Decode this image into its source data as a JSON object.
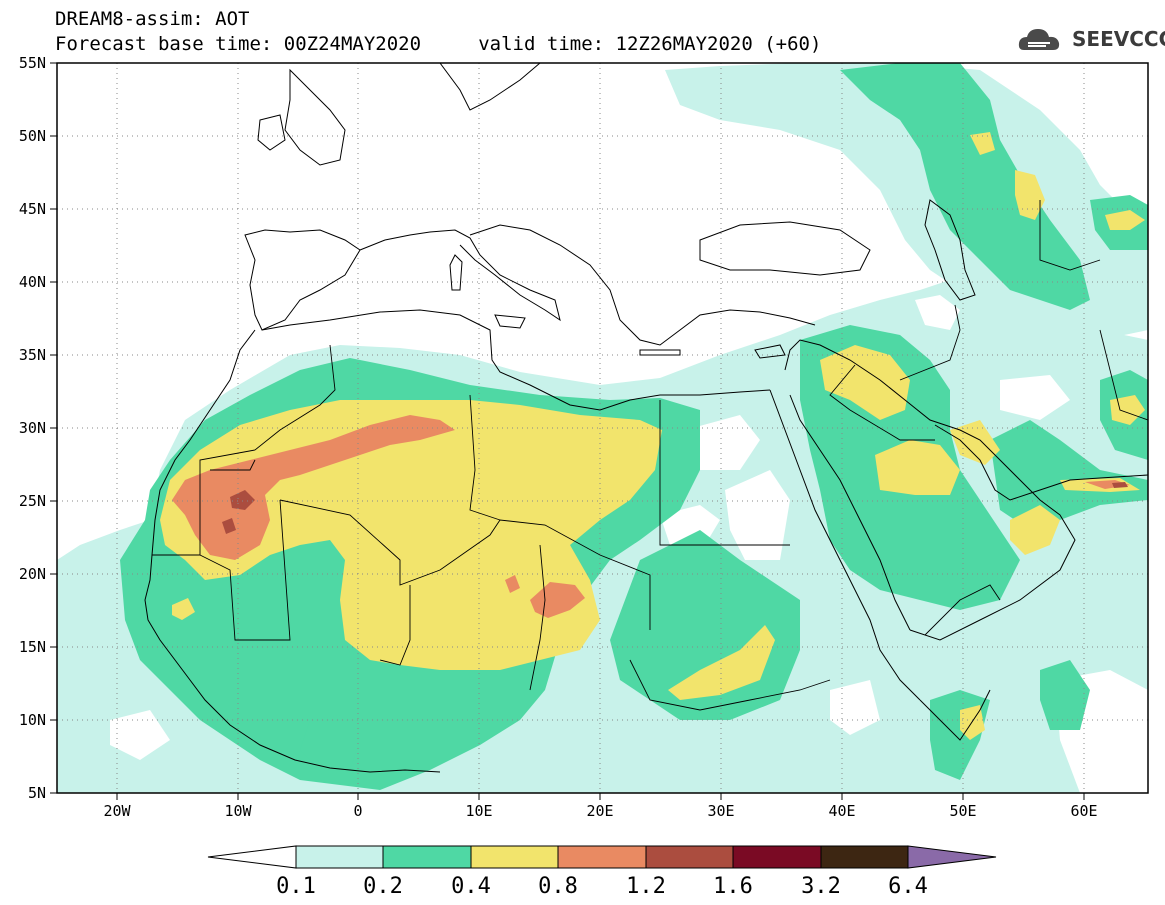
{
  "header": {
    "line1": "DREAM8-assim: AOT",
    "line2": "Forecast base time: 00Z24MAY2020     valid time: 12Z26MAY2020 (+60)"
  },
  "logo": {
    "text": "SEEVCCC",
    "icon": "cloud-icon"
  },
  "map": {
    "lon_range": [
      -25,
      65
    ],
    "lat_range": [
      5,
      55
    ],
    "lon_ticks": [
      "20W",
      "10W",
      "0",
      "10E",
      "20E",
      "30E",
      "40E",
      "50E",
      "60E"
    ],
    "lat_ticks": [
      "55N",
      "50N",
      "45N",
      "40N",
      "35N",
      "30N",
      "25N",
      "20N",
      "15N",
      "10N",
      "5N"
    ],
    "grid": "dotted"
  },
  "colorbar": {
    "labels": [
      "0.1",
      "0.2",
      "0.4",
      "0.8",
      "1.2",
      "1.6",
      "3.2",
      "6.4"
    ],
    "colors": [
      "#ffffff",
      "#c8f2ea",
      "#4fd8a4",
      "#f2e46c",
      "#e98a62",
      "#ab4d3f",
      "#7a0a24",
      "#3d2612",
      "#8a6aa8"
    ]
  }
}
